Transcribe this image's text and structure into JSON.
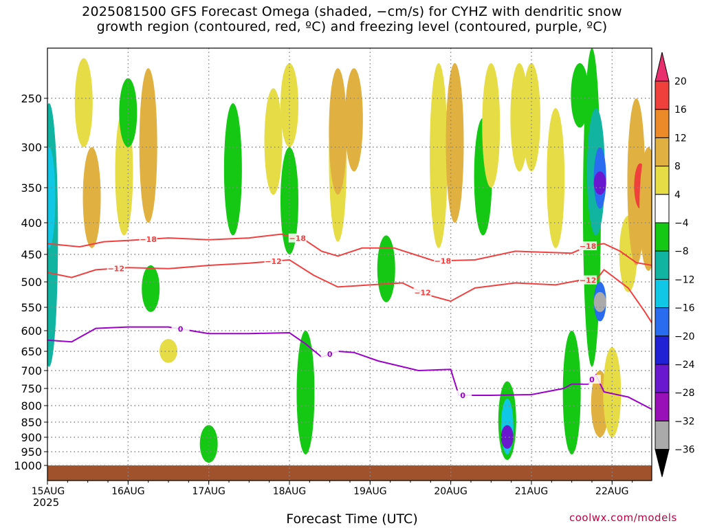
{
  "title_line1": "2025081500 GFS Forecast Omega (shaded, −cm/s) for CYHZ with dendritic snow",
  "title_line2": "growth region (contoured, red, ºC) and freezing level (contoured, purple, ºC)",
  "x_label": "Forecast Time (UTC)",
  "year_label": "2025",
  "credit": "coolwx.com/models",
  "colors": {
    "dgz": "#f04040",
    "freezing": "#9b00c8",
    "ground": "#a0522d",
    "grid": "#888888"
  },
  "chart_data": {
    "type": "heatmap",
    "x_ticks": [
      "15AUG",
      "16AUG",
      "17AUG",
      "18AUG",
      "19AUG",
      "20AUG",
      "21AUG",
      "22AUG"
    ],
    "x_range_days": [
      0,
      7.5
    ],
    "y_ticks": [
      250,
      300,
      350,
      400,
      450,
      500,
      550,
      600,
      650,
      700,
      750,
      800,
      850,
      900,
      950,
      1000
    ],
    "y_range_hpa": [
      200,
      1010
    ],
    "colorbar": {
      "labels": [
        "20",
        "16",
        "12",
        "8",
        "4",
        "−4",
        "−8",
        "−12",
        "−16",
        "−20",
        "−24",
        "−28",
        "−32",
        "−36"
      ],
      "colors": [
        "#e8306e",
        "#f0403c",
        "#ec8a2a",
        "#e0b040",
        "#e6dc46",
        "#ffffff",
        "#14c814",
        "#10b4a0",
        "#10c8e6",
        "#2a6cf0",
        "#2020d4",
        "#6a18d0",
        "#9a10b8",
        "#aaaaaa",
        "#000000"
      ]
    },
    "contour_labels": {
      "dgz_upper": "−18",
      "dgz_lower": "−12",
      "freezing": "0"
    },
    "isotherm_minus18_hpa": [
      [
        0,
        433
      ],
      [
        0.4,
        438
      ],
      [
        0.7,
        430
      ],
      [
        1.0,
        428
      ],
      [
        1.5,
        424
      ],
      [
        2.0,
        427
      ],
      [
        2.5,
        424
      ],
      [
        2.9,
        418
      ],
      [
        3.2,
        428
      ],
      [
        3.4,
        445
      ],
      [
        3.6,
        453
      ],
      [
        3.9,
        440
      ],
      [
        4.3,
        440
      ],
      [
        4.8,
        462
      ],
      [
        5.3,
        460
      ],
      [
        5.8,
        445
      ],
      [
        6.5,
        448
      ],
      [
        6.7,
        437
      ],
      [
        6.9,
        433
      ],
      [
        7.1,
        445
      ],
      [
        7.3,
        465
      ],
      [
        7.5,
        470
      ]
    ],
    "isotherm_minus12_hpa": [
      [
        0,
        483
      ],
      [
        0.3,
        492
      ],
      [
        0.6,
        478
      ],
      [
        1.0,
        474
      ],
      [
        1.5,
        476
      ],
      [
        2.0,
        470
      ],
      [
        2.5,
        466
      ],
      [
        3.0,
        460
      ],
      [
        3.3,
        488
      ],
      [
        3.6,
        510
      ],
      [
        4.0,
        506
      ],
      [
        4.4,
        502
      ],
      [
        4.7,
        525
      ],
      [
        5.0,
        538
      ],
      [
        5.3,
        512
      ],
      [
        5.8,
        502
      ],
      [
        6.3,
        506
      ],
      [
        6.6,
        497
      ],
      [
        6.8,
        497
      ],
      [
        6.9,
        478
      ],
      [
        7.2,
        512
      ],
      [
        7.4,
        558
      ],
      [
        7.5,
        585
      ]
    ],
    "isotherm_zero_hpa": [
      [
        0,
        623
      ],
      [
        0.3,
        627
      ],
      [
        0.6,
        595
      ],
      [
        1.0,
        592
      ],
      [
        1.5,
        592
      ],
      [
        2.0,
        607
      ],
      [
        2.5,
        607
      ],
      [
        3.0,
        605
      ],
      [
        3.2,
        632
      ],
      [
        3.4,
        665
      ],
      [
        3.6,
        650
      ],
      [
        3.8,
        653
      ],
      [
        4.1,
        675
      ],
      [
        4.6,
        700
      ],
      [
        5.0,
        697
      ],
      [
        5.1,
        770
      ],
      [
        5.5,
        770
      ],
      [
        6.0,
        768
      ],
      [
        6.4,
        750
      ],
      [
        6.5,
        738
      ],
      [
        6.7,
        738
      ],
      [
        6.8,
        712
      ],
      [
        6.9,
        760
      ],
      [
        7.2,
        775
      ],
      [
        7.5,
        812
      ]
    ],
    "omega_regions": [
      {
        "day": 0.02,
        "p1": 255,
        "p2": 690,
        "v": -12
      },
      {
        "day": 0.02,
        "p1": 300,
        "p2": 440,
        "v": -16
      },
      {
        "day": 0.45,
        "p1": 210,
        "p2": 300,
        "v": 4
      },
      {
        "day": 0.55,
        "p1": 300,
        "p2": 440,
        "v": 8
      },
      {
        "day": 0.95,
        "p1": 260,
        "p2": 420,
        "v": 4
      },
      {
        "day": 1.25,
        "p1": 220,
        "p2": 400,
        "v": 8
      },
      {
        "day": 1.5,
        "p1": 620,
        "p2": 680,
        "v": 4
      },
      {
        "day": 1.0,
        "p1": 230,
        "p2": 300,
        "v": -8
      },
      {
        "day": 1.28,
        "p1": 470,
        "p2": 560,
        "v": -8
      },
      {
        "day": 2.0,
        "p1": 900,
        "p2": 980,
        "v": -20
      },
      {
        "day": 2.0,
        "p1": 860,
        "p2": 990,
        "v": -8
      },
      {
        "day": 2.3,
        "p1": 255,
        "p2": 420,
        "v": -8
      },
      {
        "day": 2.8,
        "p1": 240,
        "p2": 360,
        "v": 4
      },
      {
        "day": 3.0,
        "p1": 300,
        "p2": 450,
        "v": -8
      },
      {
        "day": 3.2,
        "p1": 600,
        "p2": 960,
        "v": -8
      },
      {
        "day": 3.0,
        "p1": 215,
        "p2": 300,
        "v": 4
      },
      {
        "day": 3.6,
        "p1": 220,
        "p2": 430,
        "v": 4
      },
      {
        "day": 3.6,
        "p1": 220,
        "p2": 360,
        "v": 8
      },
      {
        "day": 3.8,
        "p1": 220,
        "p2": 330,
        "v": 8
      },
      {
        "day": 4.2,
        "p1": 420,
        "p2": 540,
        "v": -8
      },
      {
        "day": 4.85,
        "p1": 215,
        "p2": 440,
        "v": 4
      },
      {
        "day": 5.05,
        "p1": 215,
        "p2": 400,
        "v": 8
      },
      {
        "day": 5.4,
        "p1": 270,
        "p2": 420,
        "v": -8
      },
      {
        "day": 5.5,
        "p1": 215,
        "p2": 350,
        "v": 4
      },
      {
        "day": 5.7,
        "p1": 730,
        "p2": 980,
        "v": -8
      },
      {
        "day": 5.7,
        "p1": 780,
        "p2": 960,
        "v": -16
      },
      {
        "day": 5.7,
        "p1": 860,
        "p2": 940,
        "v": -28
      },
      {
        "day": 5.85,
        "p1": 215,
        "p2": 330,
        "v": 4
      },
      {
        "day": 6.0,
        "p1": 215,
        "p2": 330,
        "v": 4
      },
      {
        "day": 6.3,
        "p1": 260,
        "p2": 440,
        "v": 4
      },
      {
        "day": 6.5,
        "p1": 600,
        "p2": 960,
        "v": -8
      },
      {
        "day": 6.6,
        "p1": 215,
        "p2": 280,
        "v": -8
      },
      {
        "day": 6.75,
        "p1": 200,
        "p2": 690,
        "v": -8
      },
      {
        "day": 6.8,
        "p1": 260,
        "p2": 420,
        "v": -12
      },
      {
        "day": 6.85,
        "p1": 300,
        "p2": 380,
        "v": -20
      },
      {
        "day": 6.85,
        "p1": 330,
        "p2": 360,
        "v": -28
      },
      {
        "day": 6.85,
        "p1": 500,
        "p2": 580,
        "v": -20
      },
      {
        "day": 6.85,
        "p1": 520,
        "p2": 560,
        "v": -36
      },
      {
        "day": 6.85,
        "p1": 700,
        "p2": 900,
        "v": 8
      },
      {
        "day": 7.0,
        "p1": 640,
        "p2": 900,
        "v": 4
      },
      {
        "day": 7.2,
        "p1": 390,
        "p2": 520,
        "v": 4
      },
      {
        "day": 7.3,
        "p1": 250,
        "p2": 470,
        "v": 8
      },
      {
        "day": 7.35,
        "p1": 320,
        "p2": 380,
        "v": 16
      },
      {
        "day": 7.45,
        "p1": 300,
        "p2": 480,
        "v": 8
      }
    ]
  }
}
